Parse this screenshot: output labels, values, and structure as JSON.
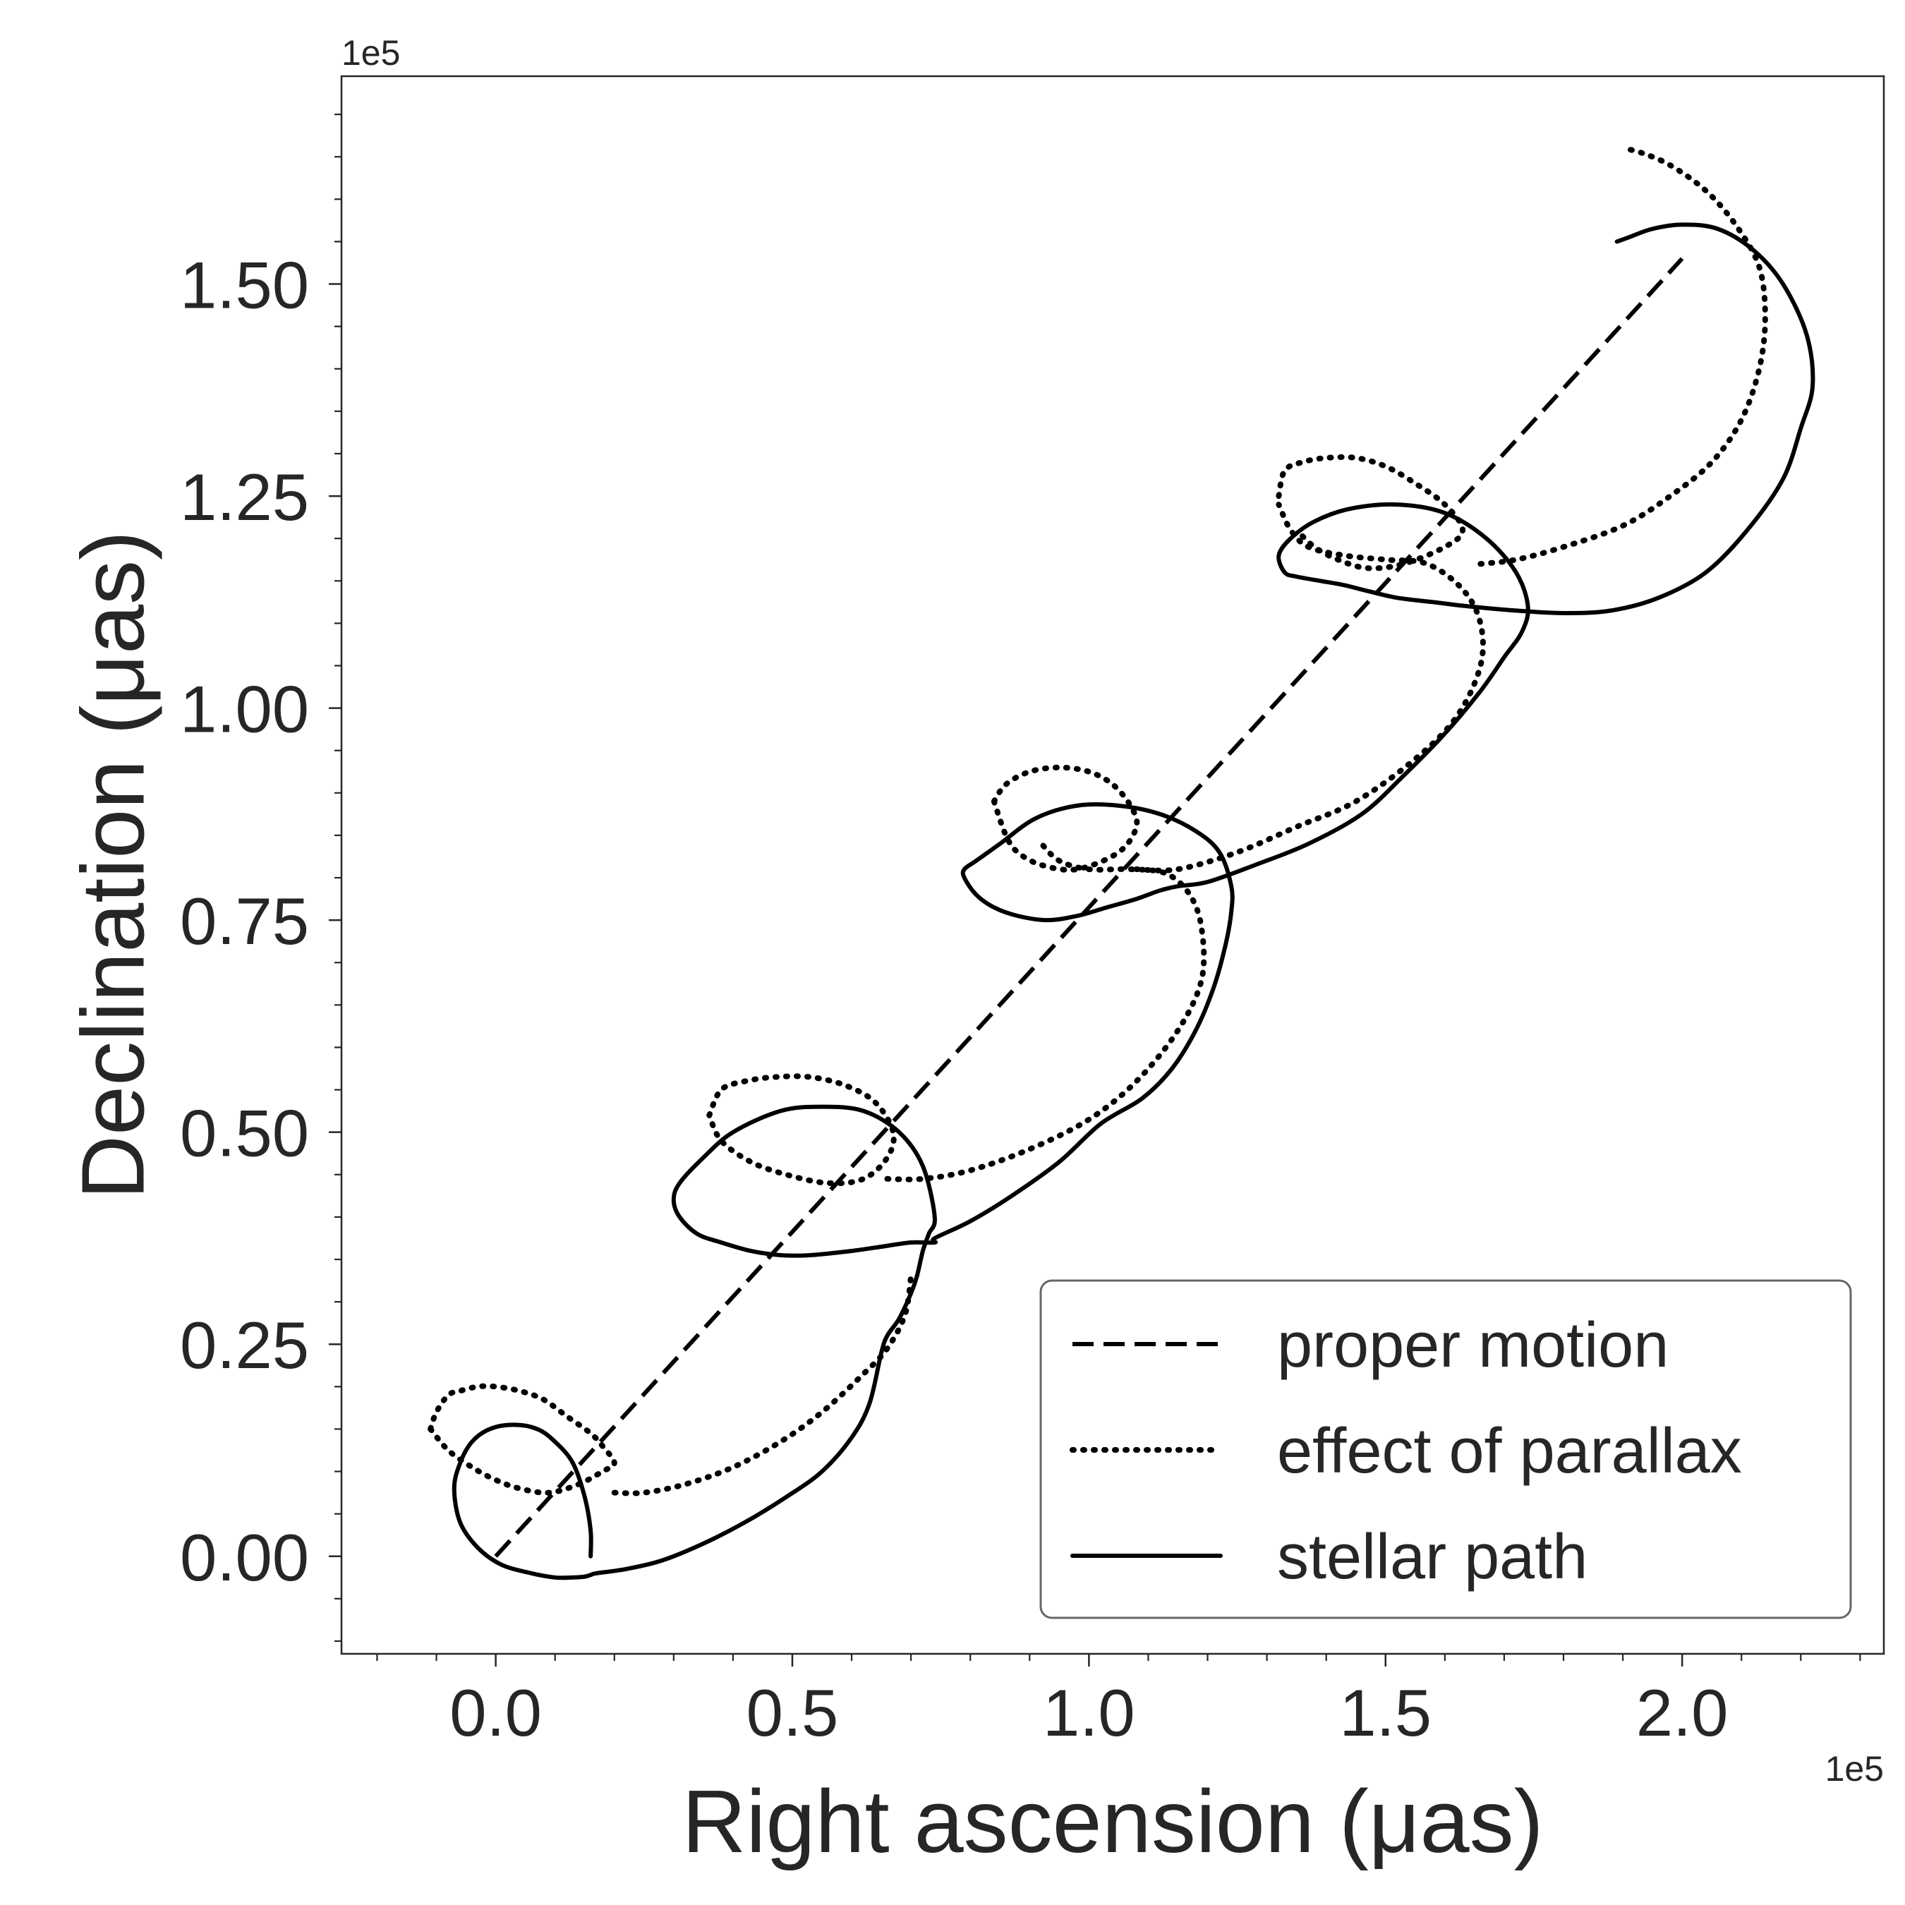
{
  "chart_data": {
    "type": "line",
    "title": "",
    "xlabel": "Right ascension (μas)",
    "ylabel": "Declination (μas)",
    "x_offset_text": "1e5",
    "y_offset_text": "1e5",
    "xlim": [
      -0.26,
      2.34
    ],
    "ylim": [
      -0.115,
      1.745
    ],
    "x_scale_note": "values in units of 1e5 μas",
    "x_ticks": [
      0.0,
      0.5,
      1.0,
      1.5,
      2.0
    ],
    "x_tick_labels": [
      "0.0",
      "0.5",
      "1.0",
      "1.5",
      "2.0"
    ],
    "y_ticks": [
      0.0,
      0.25,
      0.5,
      0.75,
      1.0,
      1.25,
      1.5
    ],
    "y_tick_labels": [
      "0.00",
      "0.25",
      "0.50",
      "0.75",
      "1.00",
      "1.25",
      "1.50"
    ],
    "x_minor_step": 0.1,
    "y_minor_step": 0.05,
    "grid": false,
    "legend_position": "bottom-right",
    "series": [
      {
        "name": "proper motion",
        "style": "dashed",
        "color": "#000000",
        "x": [
          0.0,
          2.0
        ],
        "y": [
          0.0,
          1.53
        ]
      },
      {
        "name": "effect of parallax",
        "style": "dotted",
        "color": "#000000",
        "x": [
          -0.11,
          -0.1,
          -0.08,
          -0.06,
          -0.03,
          0.0,
          0.04,
          0.08,
          0.12,
          0.16,
          0.18,
          0.2,
          0.18,
          0.14,
          0.09,
          0.04,
          0.0,
          -0.04,
          -0.08,
          -0.11
        ],
        "y": [
          0.15,
          0.17,
          0.19,
          0.195,
          0.2,
          0.2,
          0.195,
          0.185,
          0.165,
          0.145,
          0.13,
          0.11,
          0.1,
          0.085,
          0.075,
          0.08,
          0.09,
          0.105,
          0.125,
          0.15
        ]
      },
      {
        "name": "",
        "style": "dotted",
        "color": "#000000",
        "x": [
          0.2,
          0.25,
          0.32,
          0.4,
          0.48,
          0.55,
          0.62,
          0.66,
          0.69,
          0.7
        ],
        "y": [
          0.075,
          0.075,
          0.085,
          0.105,
          0.135,
          0.17,
          0.215,
          0.245,
          0.285,
          0.33
        ]
      },
      {
        "name": "",
        "style": "dotted",
        "color": "#000000",
        "x": [
          0.36,
          0.38,
          0.42,
          0.47,
          0.53,
          0.59,
          0.64,
          0.67,
          0.66,
          0.62,
          0.56,
          0.49,
          0.43,
          0.38,
          0.36
        ],
        "y": [
          0.52,
          0.55,
          0.56,
          0.565,
          0.565,
          0.555,
          0.535,
          0.5,
          0.47,
          0.445,
          0.44,
          0.45,
          0.465,
          0.49,
          0.52
        ]
      },
      {
        "name": "",
        "style": "dotted",
        "color": "#000000",
        "x": [
          0.66,
          0.72,
          0.8,
          0.9,
          1.0,
          1.08,
          1.15,
          1.19,
          1.19,
          1.17,
          1.13,
          1.07,
          1.0,
          0.95,
          0.92
        ],
        "y": [
          0.445,
          0.445,
          0.455,
          0.48,
          0.515,
          0.56,
          0.62,
          0.68,
          0.74,
          0.78,
          0.805,
          0.81,
          0.81,
          0.82,
          0.84
        ]
      },
      {
        "name": "",
        "style": "dotted",
        "color": "#000000",
        "x": [
          0.84,
          0.86,
          0.9,
          0.95,
          1.0,
          1.04,
          1.07,
          1.08,
          1.05,
          0.98,
          0.92,
          0.88,
          0.86,
          0.84
        ],
        "y": [
          0.89,
          0.91,
          0.925,
          0.93,
          0.925,
          0.91,
          0.885,
          0.86,
          0.83,
          0.81,
          0.815,
          0.83,
          0.85,
          0.89
        ]
      },
      {
        "name": "",
        "style": "dotted",
        "color": "#000000",
        "x": [
          1.08,
          1.15,
          1.25,
          1.35,
          1.45,
          1.55,
          1.62,
          1.66,
          1.66,
          1.63,
          1.57,
          1.5,
          1.43,
          1.37,
          1.34,
          1.32
        ],
        "y": [
          0.81,
          0.81,
          0.83,
          0.86,
          0.89,
          0.94,
          0.99,
          1.05,
          1.1,
          1.14,
          1.17,
          1.175,
          1.18,
          1.19,
          1.21,
          1.24
        ]
      },
      {
        "name": "",
        "style": "dotted",
        "color": "#000000",
        "x": [
          1.32,
          1.33,
          1.36,
          1.4,
          1.45,
          1.5,
          1.55,
          1.6,
          1.63,
          1.6,
          1.53,
          1.47,
          1.42,
          1.38,
          1.35
        ],
        "y": [
          1.25,
          1.28,
          1.29,
          1.295,
          1.295,
          1.285,
          1.265,
          1.24,
          1.21,
          1.19,
          1.17,
          1.165,
          1.175,
          1.19,
          1.21
        ]
      },
      {
        "name": "",
        "style": "dotted",
        "color": "#000000",
        "x": [
          1.66,
          1.72,
          1.8,
          1.9,
          1.98,
          2.05,
          2.1,
          2.13,
          2.14,
          2.13,
          2.09,
          2.04,
          1.98,
          1.93,
          1.9
        ],
        "y": [
          1.17,
          1.175,
          1.19,
          1.215,
          1.25,
          1.29,
          1.34,
          1.4,
          1.46,
          1.52,
          1.57,
          1.61,
          1.64,
          1.655,
          1.66
        ]
      },
      {
        "name": "stellar path",
        "style": "solid",
        "color": "#000000",
        "x": [
          0.16,
          0.16,
          0.15,
          0.13,
          0.1,
          0.07,
          0.03,
          -0.01,
          -0.04,
          -0.06,
          -0.07,
          -0.06,
          -0.03,
          0.01,
          0.06,
          0.1,
          0.13,
          0.15,
          0.16,
          0.17,
          0.22,
          0.28,
          0.35,
          0.42,
          0.49,
          0.55,
          0.6,
          0.63,
          0.65,
          0.66,
          0.68,
          0.7,
          0.71,
          0.72,
          0.73,
          0.74,
          0.72,
          0.68,
          0.62,
          0.55,
          0.48,
          0.4,
          0.35,
          0.31,
          0.3,
          0.31,
          0.34,
          0.38,
          0.43,
          0.48,
          0.53,
          0.6,
          0.65,
          0.7,
          0.74,
          0.74,
          0.8,
          0.87,
          0.95,
          1.02,
          1.09,
          1.14,
          1.18,
          1.21,
          1.23,
          1.24,
          1.24,
          1.22,
          1.18,
          1.12,
          1.05,
          0.98,
          0.91,
          0.85,
          0.81,
          0.79,
          0.79,
          0.81,
          0.84,
          0.88,
          0.93,
          0.98,
          1.03,
          1.08,
          1.12,
          1.15,
          1.2,
          1.28,
          1.37,
          1.46,
          1.53,
          1.6,
          1.66,
          1.7,
          1.73,
          1.74,
          1.72,
          1.67,
          1.6,
          1.52,
          1.44,
          1.38,
          1.34,
          1.32,
          1.33,
          1.35,
          1.39,
          1.43,
          1.47,
          1.52,
          1.58,
          1.64,
          1.72,
          1.8,
          1.88,
          1.96,
          2.04,
          2.11,
          2.17,
          2.2,
          2.22,
          2.21,
          2.17,
          2.12,
          2.06,
          2.0,
          1.95,
          1.91,
          1.89
        ],
        "y": [
          0.0,
          0.03,
          0.07,
          0.11,
          0.135,
          0.15,
          0.155,
          0.15,
          0.135,
          0.11,
          0.08,
          0.04,
          0.01,
          -0.01,
          -0.02,
          -0.025,
          -0.025,
          -0.024,
          -0.022,
          -0.02,
          -0.015,
          -0.005,
          0.015,
          0.04,
          0.07,
          0.1,
          0.14,
          0.18,
          0.24,
          0.26,
          0.28,
          0.31,
          0.33,
          0.36,
          0.38,
          0.4,
          0.46,
          0.5,
          0.525,
          0.53,
          0.525,
          0.5,
          0.47,
          0.44,
          0.42,
          0.4,
          0.38,
          0.37,
          0.36,
          0.355,
          0.355,
          0.36,
          0.365,
          0.37,
          0.37,
          0.375,
          0.395,
          0.425,
          0.465,
          0.51,
          0.54,
          0.575,
          0.62,
          0.67,
          0.72,
          0.76,
          0.79,
          0.83,
          0.855,
          0.875,
          0.885,
          0.885,
          0.87,
          0.84,
          0.82,
          0.81,
          0.8,
          0.78,
          0.765,
          0.755,
          0.75,
          0.755,
          0.765,
          0.775,
          0.785,
          0.79,
          0.795,
          0.815,
          0.84,
          0.875,
          0.92,
          0.97,
          1.02,
          1.06,
          1.09,
          1.12,
          1.16,
          1.2,
          1.23,
          1.24,
          1.235,
          1.22,
          1.2,
          1.18,
          1.16,
          1.155,
          1.15,
          1.145,
          1.138,
          1.13,
          1.125,
          1.12,
          1.115,
          1.112,
          1.115,
          1.13,
          1.16,
          1.21,
          1.27,
          1.33,
          1.38,
          1.44,
          1.5,
          1.54,
          1.565,
          1.57,
          1.565,
          1.555,
          1.55
        ]
      }
    ],
    "legend": [
      {
        "label": "proper motion",
        "style": "dashed"
      },
      {
        "label": "effect of parallax",
        "style": "dotted"
      },
      {
        "label": "stellar path",
        "style": "solid"
      }
    ]
  }
}
